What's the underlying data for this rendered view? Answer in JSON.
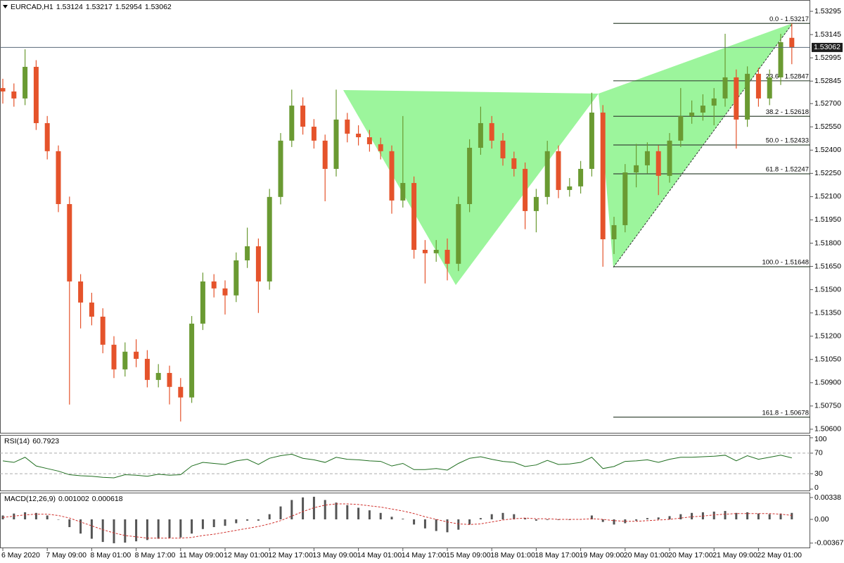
{
  "chart_data": [
    {
      "type": "candlestick",
      "title": "EURCAD,H1",
      "ohlc": [
        1.53124,
        1.53217,
        1.52954,
        1.53062
      ],
      "up_color": "#6a9a32",
      "down_color": "#e5532b",
      "categories": [
        "6 May 2020",
        null,
        null,
        null,
        "7 May 09:00",
        null,
        null,
        null,
        "8 May 01:00",
        null,
        null,
        null,
        "8 May 17:00",
        null,
        null,
        null,
        "11 May 09:00",
        null,
        null,
        null,
        "12 May 01:00",
        null,
        null,
        null,
        "12 May 17:00",
        null,
        null,
        null,
        "13 May 09:00",
        null,
        null,
        null,
        "14 May 01:00",
        null,
        null,
        null,
        "14 May 17:00",
        null,
        null,
        null,
        "15 May 09:00",
        null,
        null,
        null,
        "18 May 01:00",
        null,
        null,
        null,
        "18 May 17:00",
        null,
        null,
        null,
        "19 May 09:00",
        null,
        null,
        null,
        "20 May 01:00",
        null,
        null,
        null,
        "20 May 17:00",
        null,
        null,
        null,
        "21 May 09:00",
        null,
        null,
        null,
        "22 May 01:00",
        null,
        null,
        null
      ],
      "open": [
        1.528,
        1.52778,
        1.52733,
        1.52937,
        1.52574,
        1.52393,
        1.52052,
        1.51553,
        1.51417,
        1.51326,
        1.51145,
        1.50986,
        1.511,
        1.51054,
        1.50918,
        1.50963,
        1.50873,
        1.50805,
        1.51281,
        1.51553,
        1.51508,
        1.51463,
        1.51689,
        1.5178,
        1.51553,
        1.52098,
        1.52461,
        1.52687,
        1.52551,
        1.52461,
        1.52279,
        1.52597,
        1.52506,
        1.52483,
        1.52438,
        1.52393,
        1.52075,
        1.52188,
        1.51757,
        1.51735,
        1.51757,
        1.51667,
        1.52052,
        1.52415,
        1.52574,
        1.52461,
        1.52347,
        1.52279,
        1.52007,
        1.52098,
        1.52393,
        1.52143,
        1.52166,
        1.52279,
        1.52642,
        1.51825,
        1.51916,
        1.52256,
        1.52302,
        1.52393,
        1.52234,
        1.52461,
        1.52619,
        1.52642,
        1.52687,
        1.52733,
        1.52869,
        1.52597,
        1.52892,
        1.52733,
        1.52869,
        1.53124
      ],
      "high": [
        1.5286,
        1.5283,
        1.5305,
        1.5298,
        1.5262,
        1.5243,
        1.521,
        1.516,
        1.5148,
        1.5138,
        1.512,
        1.5116,
        1.5118,
        1.5111,
        1.5102,
        1.5101,
        1.5093,
        1.5133,
        1.5161,
        1.516,
        1.5156,
        1.5174,
        1.519,
        1.5183,
        1.5215,
        1.5251,
        1.5279,
        1.5274,
        1.526,
        1.525,
        1.5279,
        1.5264,
        1.5256,
        1.5253,
        1.5248,
        1.5243,
        1.5262,
        1.5223,
        1.5182,
        1.5182,
        1.5183,
        1.521,
        1.5247,
        1.5268,
        1.5262,
        1.5251,
        1.5239,
        1.5232,
        1.5215,
        1.5246,
        1.5243,
        1.5222,
        1.5233,
        1.5277,
        1.5269,
        1.5197,
        1.5231,
        1.5244,
        1.5245,
        1.5243,
        1.5251,
        1.528,
        1.5272,
        1.5276,
        1.528,
        1.5315,
        1.5292,
        1.5294,
        1.5293,
        1.5292,
        1.5315,
        1.53217
      ],
      "low": [
        1.527,
        1.5268,
        1.5269,
        1.5253,
        1.5234,
        1.52,
        1.50759,
        1.5125,
        1.5127,
        1.5109,
        1.5093,
        1.5094,
        1.51,
        1.5087,
        1.5087,
        1.5076,
        1.5065,
        1.5077,
        1.5124,
        1.5145,
        1.5134,
        1.5142,
        1.5164,
        1.5135,
        1.515,
        1.5205,
        1.5242,
        1.525,
        1.5241,
        1.5207,
        1.5223,
        1.5245,
        1.5243,
        1.5239,
        1.5234,
        1.5199,
        1.5203,
        1.517,
        1.5154,
        1.5168,
        1.5156,
        1.5162,
        1.52,
        1.5237,
        1.5241,
        1.523,
        1.5223,
        1.5189,
        1.5187,
        1.5205,
        1.5209,
        1.521,
        1.5212,
        1.5223,
        1.51648,
        1.5173,
        1.5187,
        1.5216,
        1.5225,
        1.5211,
        1.5219,
        1.5242,
        1.5257,
        1.5259,
        1.5256,
        1.5268,
        1.5241,
        1.5255,
        1.5268,
        1.5269,
        1.5282,
        1.52954
      ],
      "close": [
        1.52778,
        1.52733,
        1.52937,
        1.52574,
        1.52393,
        1.52052,
        1.51553,
        1.51417,
        1.51326,
        1.51145,
        1.50986,
        1.511,
        1.51054,
        1.50918,
        1.50963,
        1.50873,
        1.50805,
        1.51281,
        1.51553,
        1.51508,
        1.51463,
        1.51689,
        1.5178,
        1.51553,
        1.52098,
        1.52461,
        1.52687,
        1.52551,
        1.52461,
        1.52279,
        1.52597,
        1.52506,
        1.52483,
        1.52438,
        1.52393,
        1.52075,
        1.52188,
        1.51757,
        1.51735,
        1.51757,
        1.51667,
        1.52052,
        1.52415,
        1.52574,
        1.52461,
        1.52347,
        1.52279,
        1.52007,
        1.52098,
        1.52393,
        1.52143,
        1.52166,
        1.52279,
        1.52642,
        1.51825,
        1.51916,
        1.52256,
        1.52302,
        1.52393,
        1.52234,
        1.52461,
        1.52619,
        1.52642,
        1.52687,
        1.52733,
        1.52869,
        1.52597,
        1.52892,
        1.52733,
        1.52869,
        1.53096,
        1.53062
      ],
      "ylim": [
        1.50577,
        1.53368
      ],
      "yticks": [
        1.53295,
        1.53145,
        1.52995,
        1.52845,
        {
          "value": 1.527,
          "label": "1.52700"
        },
        {
          "value": 1.5255,
          "label": "1.52550"
        },
        {
          "value": 1.524,
          "label": "1.52400"
        },
        {
          "value": 1.5225,
          "label": "1.52250"
        },
        {
          "value": 1.521,
          "label": "1.52100"
        },
        {
          "value": 1.5195,
          "label": "1.51950"
        },
        {
          "value": 1.518,
          "label": "1.51800"
        },
        {
          "value": 1.5165,
          "label": "1.51650"
        },
        {
          "value": 1.515,
          "label": "1.51500"
        },
        {
          "value": 1.5135,
          "label": "1.51350"
        },
        {
          "value": 1.512,
          "label": "1.51200"
        },
        {
          "value": 1.5105,
          "label": "1.51050"
        },
        {
          "value": 1.509,
          "label": "1.50900"
        },
        {
          "value": 1.5075,
          "label": "1.50750"
        },
        {
          "value": 1.506,
          "label": "1.50600"
        }
      ],
      "last_price": 1.53062,
      "fibonacci": [
        {
          "label": "0.0 - 1.53217",
          "value": 1.53217
        },
        {
          "label": "23.6 - 1.52847",
          "value": 1.52847
        },
        {
          "label": "38.2 - 1.52618",
          "value": 1.52618
        },
        {
          "label": "50.0 - 1.52433",
          "value": 1.52433
        },
        {
          "label": "61.8 - 1.52247",
          "value": 1.52247
        },
        {
          "label": "100.0 - 1.51648",
          "value": 1.51648
        },
        {
          "label": "161.8 - 1.50678",
          "value": 1.50678
        }
      ]
    },
    {
      "type": "line",
      "title": "RSI(14)",
      "current": 60.7923,
      "color": "#1f6e1f",
      "values": [
        55,
        52,
        62,
        45,
        40,
        35,
        28,
        26,
        25,
        23,
        22,
        28,
        27,
        25,
        29,
        27,
        28,
        45,
        52,
        50,
        48,
        55,
        58,
        48,
        60,
        65,
        68,
        60,
        57,
        52,
        62,
        58,
        57,
        55,
        54,
        45,
        50,
        38,
        38,
        40,
        37,
        50,
        60,
        63,
        58,
        54,
        52,
        44,
        47,
        56,
        48,
        49,
        52,
        62,
        40,
        44,
        54,
        55,
        57,
        52,
        58,
        62,
        62,
        63,
        64,
        66,
        55,
        65,
        58,
        62,
        66,
        60.7923
      ],
      "ylim": [
        0,
        100
      ],
      "yticks": [
        100,
        70,
        30,
        0
      ]
    },
    {
      "type": "macd",
      "title": "MACD(12,26,9)",
      "main": 0.001002,
      "signal_value": 0.000618,
      "color": "#555555",
      "signal_color": "#d0312d",
      "histogram": [
        0.0006,
        0.0009,
        0.0011,
        0.001,
        0.0006,
        0,
        -0.0012,
        -0.0022,
        -0.003,
        -0.0035,
        -0.0037,
        -0.0036,
        -0.0034,
        -0.0032,
        -0.003,
        -0.0029,
        -0.0028,
        -0.0022,
        -0.0015,
        -0.0012,
        -0.001,
        -0.0006,
        -0.0002,
        -0.0002,
        0.0008,
        0.002,
        0.003,
        0.0034,
        0.0035,
        0.003,
        0.0026,
        0.0022,
        0.0018,
        0.0014,
        0.001,
        0.0004,
        0.0001,
        -0.0008,
        -0.0014,
        -0.0018,
        -0.002,
        -0.0016,
        -0.0008,
        0.0002,
        0.0008,
        0.001,
        0.0008,
        0.0002,
        -0.0002,
        -0.0001,
        -0.0001,
        -0.0001,
        0,
        0.0006,
        -0.0004,
        -0.0008,
        -0.0006,
        -0.0002,
        0.0002,
        0.0003,
        0.0005,
        0.0008,
        0.001,
        0.0011,
        0.0012,
        0.0013,
        0.001,
        0.0011,
        0.0009,
        0.0008,
        0.0009,
        0.001002
      ],
      "signal": [
        0.0003,
        0.0005,
        0.0007,
        0.0008,
        0.0008,
        0.0006,
        0.0002,
        -0.0004,
        -0.001,
        -0.0016,
        -0.0021,
        -0.0025,
        -0.0027,
        -0.0029,
        -0.0029,
        -0.0029,
        -0.0029,
        -0.0028,
        -0.0025,
        -0.0023,
        -0.002,
        -0.0017,
        -0.0014,
        -0.0011,
        -0.0007,
        -0.0002,
        0.0005,
        0.0012,
        0.0018,
        0.0022,
        0.0024,
        0.0024,
        0.0023,
        0.0021,
        0.0019,
        0.0016,
        0.0013,
        0.0009,
        0.0004,
        0,
        -0.0004,
        -0.0007,
        -0.0008,
        -0.0007,
        -0.0004,
        -0.0001,
        0.0001,
        0.0002,
        0.0001,
        0.0001,
        0,
        0,
        0,
        0.0001,
        0,
        -0.0002,
        -0.0003,
        -0.0003,
        -0.0002,
        -0.0001,
        0,
        0.0002,
        0.0004,
        0.0005,
        0.0007,
        0.0008,
        0.0009,
        0.0009,
        0.0009,
        0.0009,
        0.0008,
        0.000618
      ],
      "ylim": [
        -0.00436,
        0.00414
      ],
      "yticks": [
        0.00338,
        {
          "value": 0,
          "label": "0.00"
        },
        -0.003676
      ]
    }
  ]
}
